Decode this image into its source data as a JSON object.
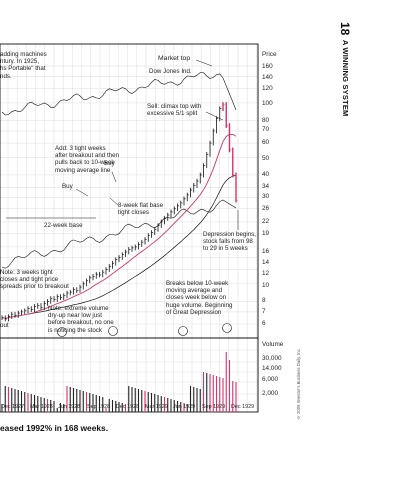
{
  "side_title": {
    "number": "18",
    "text": "A WINNING SYSTEM"
  },
  "caption": "eased 1992% in 168 weeks.",
  "copyright": "© 2009 Investor's Business Daily, Inc.",
  "chart_data": {
    "type": "line",
    "title": "",
    "price_axis_label": "Price",
    "price_ticks": [
      "160",
      "140",
      "120",
      "100",
      "80",
      "70",
      "60",
      "50",
      "40",
      "34",
      "30",
      "26",
      "22",
      "19",
      "16",
      "14",
      "12",
      "10",
      "8",
      "7",
      "6"
    ],
    "volume_axis_label": "Volume",
    "volume_ticks": [
      "30,000",
      "14,000",
      "6,000",
      "2,000"
    ],
    "x_tick_labels": [
      "Dec 1927",
      "Mar 1928",
      "Jun 1928",
      "Sep 1928",
      "Dec 1928",
      "Mar 1929",
      "Jun 1929",
      "Sep 1929",
      "Dec 1929"
    ],
    "series": [
      {
        "name": "Dow Jones Ind.",
        "values": []
      }
    ],
    "price_estimate_weekly": [
      6.5,
      6.4,
      6.6,
      6.8,
      6.7,
      6.9,
      7.0,
      7.1,
      7.3,
      7.2,
      7.5,
      7.6,
      7.4,
      7.8,
      8.0,
      8.3,
      8.2,
      8.5,
      8.4,
      8.6,
      8.9,
      9.0,
      9.3,
      9.2,
      9.6,
      10.0,
      10.4,
      10.8,
      11.0,
      11.3,
      11.2,
      11.6,
      12.0,
      12.5,
      13.0,
      13.6,
      14.0,
      14.5,
      15.0,
      15.5,
      15.8,
      16.0,
      16.5,
      17.0,
      17.6,
      18.5,
      19.2,
      20.0,
      21.0,
      22.0,
      23.0,
      24.0,
      25.0,
      26.0,
      27.0,
      28.0,
      29.5,
      31.0,
      33.0,
      35.0,
      37.0,
      40.0,
      45.0,
      52.0,
      60.0,
      70.0,
      82.0,
      93.0,
      98.0,
      75.0,
      55.0,
      40.0,
      29.0
    ],
    "annotations": [
      "Market top",
      "Dow Jones Ind.",
      "Sell: climax top with\nexcessive 5/1 split",
      "Add: 3 tight weeks\nafter breakout and then\npulls back to 10-week\nmoving average line",
      "Buy",
      "Buy",
      "8-week flat base\ntight closes",
      "22-week base",
      "Depression begins,\nstock falls from 98\nto 29 in 5 weeks",
      "Note: 3 weeks tight\ncloses and tight price\nspreads prior to breakout",
      "Breaks below 10-week\nmoving average and\ncloses week below on\nhuge volume. Beginning\nof Great Depression",
      "Note: extreme volume\ndry-up near low just\nbefore breakout, no one\nis noticing the stock",
      "out",
      "adding machines\nntury. In 1925,\nhs Portable\" that\nnds."
    ]
  }
}
